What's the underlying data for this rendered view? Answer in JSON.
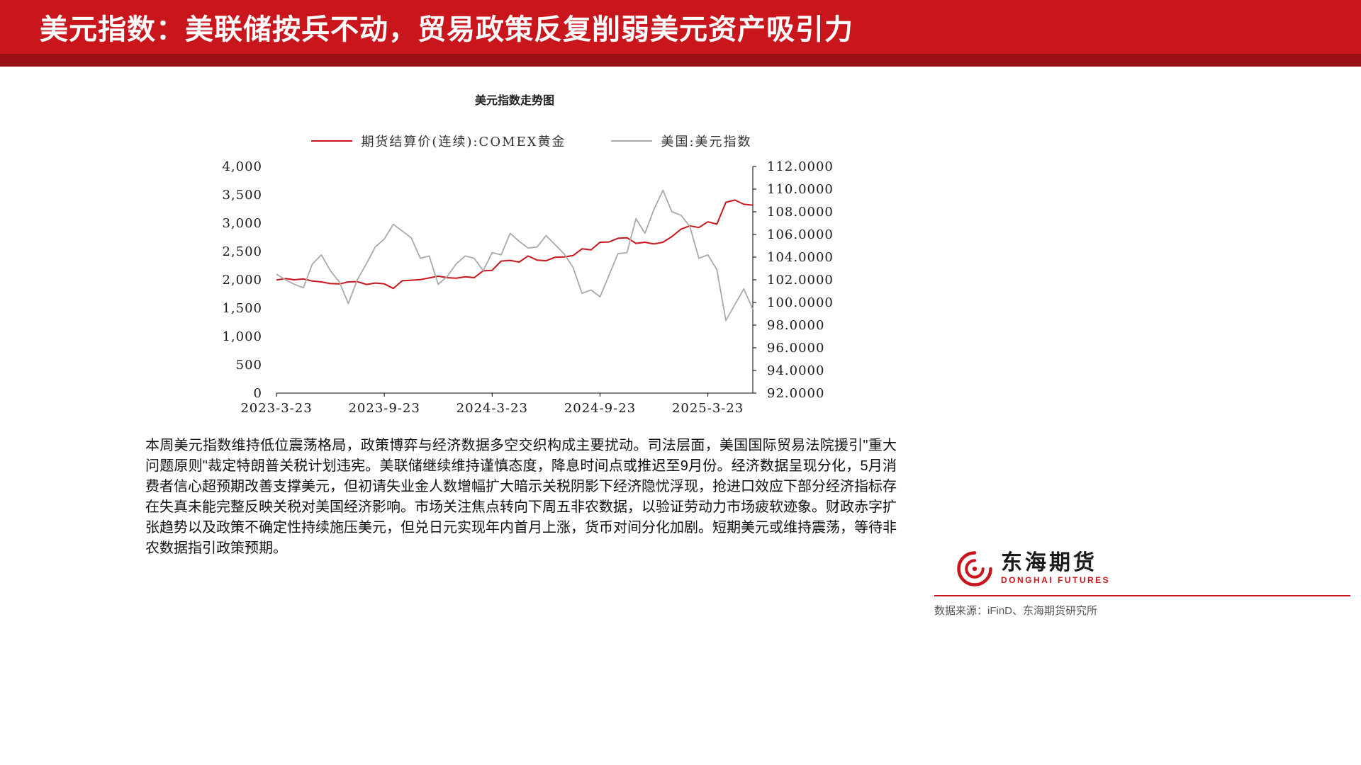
{
  "colors": {
    "brand_red": "#c9161d",
    "banner_strip_red": "#9a1016",
    "gold_line": "#c9151c",
    "dxy_line": "#a9a9a9"
  },
  "banner": {
    "title": "美元指数：美联储按兵不动，贸易政策反复削弱美元资产吸引力"
  },
  "chart": {
    "title": "美元指数走势图"
  },
  "chart_data": {
    "type": "line",
    "title": "美元指数走势图",
    "x_ticks": [
      "2023-3-23",
      "2023-9-23",
      "2024-3-23",
      "2024-9-23",
      "2025-3-23"
    ],
    "x_tick_months": [
      0,
      6,
      12,
      18,
      24
    ],
    "x_max_months": 26.5,
    "step_months": 0.5,
    "grid": false,
    "legend_position": "top",
    "left_axis": {
      "min": 0,
      "max": 4000,
      "tick_labels": [
        "4,000",
        "3,500",
        "3,000",
        "2,500",
        "2,000",
        "1,500",
        "1,000",
        "500",
        "0"
      ]
    },
    "right_axis": {
      "min": 92,
      "max": 112,
      "tick_labels": [
        "112.0000",
        "110.0000",
        "108.0000",
        "106.0000",
        "104.0000",
        "102.0000",
        "100.0000",
        "98.0000",
        "96.0000",
        "94.0000",
        "92.0000"
      ]
    },
    "series": [
      {
        "name": "期货结算价(连续):COMEX黄金",
        "axis": "left",
        "color": "#c9151c",
        "width": 2,
        "values": [
          1996,
          2022,
          2000,
          2015,
          1978,
          1962,
          1932,
          1928,
          1962,
          1968,
          1918,
          1942,
          1927,
          1848,
          1982,
          1992,
          2002,
          2032,
          2064,
          2038,
          2028,
          2052,
          2038,
          2158,
          2168,
          2330,
          2342,
          2312,
          2420,
          2348,
          2336,
          2398,
          2402,
          2428,
          2546,
          2528,
          2662,
          2668,
          2732,
          2742,
          2642,
          2662,
          2632,
          2662,
          2762,
          2892,
          2952,
          2922,
          3022,
          2982,
          3368,
          3408,
          3332,
          3318
        ]
      },
      {
        "name": "美国:美元指数",
        "axis": "right",
        "color": "#a9a9a9",
        "width": 1.8,
        "values": [
          102.5,
          102.0,
          101.6,
          101.3,
          103.4,
          104.2,
          102.8,
          101.8,
          99.9,
          102.0,
          103.4,
          104.9,
          105.6,
          106.9,
          106.3,
          105.7,
          103.9,
          104.1,
          101.6,
          102.3,
          103.4,
          104.1,
          103.9,
          102.8,
          104.4,
          104.2,
          106.1,
          105.4,
          104.8,
          104.9,
          105.9,
          105.1,
          104.3,
          103.1,
          100.8,
          101.1,
          100.5,
          102.4,
          104.3,
          104.4,
          107.4,
          106.1,
          108.2,
          109.9,
          108.0,
          107.7,
          106.7,
          103.9,
          104.2,
          102.9,
          98.4,
          99.8,
          101.2,
          99.4
        ]
      }
    ]
  },
  "body": {
    "paragraph": "本周美元指数维持低位震荡格局，政策博弈与经济数据多空交织构成主要扰动。司法层面，美国国际贸易法院援引\"重大问题原则\"裁定特朗普关税计划违宪。美联储继续维持谨慎态度，降息时间点或推迟至9月份。经济数据呈现分化，5月消费者信心超预期改善支撑美元，但初请失业金人数增幅扩大暗示关税阴影下经济隐忧浮现，抢进口效应下部分经济指标存在失真未能完整反映关税对美国经济影响。市场关注焦点转向下周五非农数据，以验证劳动力市场疲软迹象。财政赤字扩张趋势以及政策不确定性持续施压美元，但兑日元实现年内首月上涨，货币对间分化加剧。短期美元或维持震荡，等待非农数据指引政策预期。"
  },
  "footer": {
    "logo_cn": "东海期货",
    "logo_en": "DONGHAI FUTURES",
    "source": "数据来源：iFinD、东海期货研究所"
  }
}
